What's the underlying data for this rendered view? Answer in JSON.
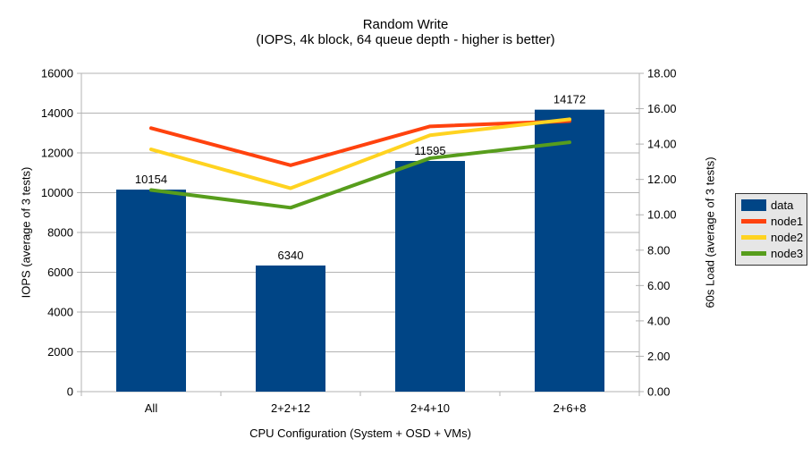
{
  "title": "Random Write",
  "subtitle": "(IOPS, 4k block, 64 queue depth - higher is better)",
  "colors": {
    "background": "#FFFFFF",
    "text": "#000000",
    "grid": "#B3B3B3",
    "axis": "#B3B3B3",
    "legend_bg": "#E6E6E6",
    "legend_border": "#333333"
  },
  "chart_data": {
    "type": "bar+line",
    "categories": [
      "All",
      "2+2+12",
      "2+4+10",
      "2+6+8"
    ],
    "x_title": "CPU Configuration (System + OSD + VMs)",
    "left_axis": {
      "title": "IOPS (average of 3 tests)",
      "min": 0,
      "max": 16000,
      "step": 2000,
      "tick_labels": [
        "0",
        "2000",
        "4000",
        "6000",
        "8000",
        "10000",
        "12000",
        "14000",
        "16000"
      ]
    },
    "right_axis": {
      "title": "60s Load (average of 3 tests)",
      "min": 0,
      "max": 18,
      "step": 2,
      "tick_labels": [
        "0.00",
        "2.00",
        "4.00",
        "6.00",
        "8.00",
        "10.00",
        "12.00",
        "14.00",
        "16.00",
        "18.00"
      ]
    },
    "bar_series": {
      "name": "data",
      "color": "#004586",
      "axis": "left",
      "values": [
        10154,
        6340,
        11595,
        14172
      ],
      "data_labels": [
        "10154",
        "6340",
        "11595",
        "14172"
      ]
    },
    "line_series": [
      {
        "name": "node1",
        "color": "#FF420E",
        "axis": "right",
        "values": [
          14.9,
          12.8,
          15.0,
          15.3
        ]
      },
      {
        "name": "node2",
        "color": "#FFD320",
        "axis": "right",
        "values": [
          13.7,
          11.5,
          14.5,
          15.4
        ]
      },
      {
        "name": "node3",
        "color": "#579D1C",
        "axis": "right",
        "values": [
          11.4,
          10.4,
          13.2,
          14.1
        ]
      }
    ],
    "legend": {
      "position": "right",
      "entries": [
        "data",
        "node1",
        "node2",
        "node3"
      ]
    },
    "grid": {
      "horizontal": true
    }
  }
}
